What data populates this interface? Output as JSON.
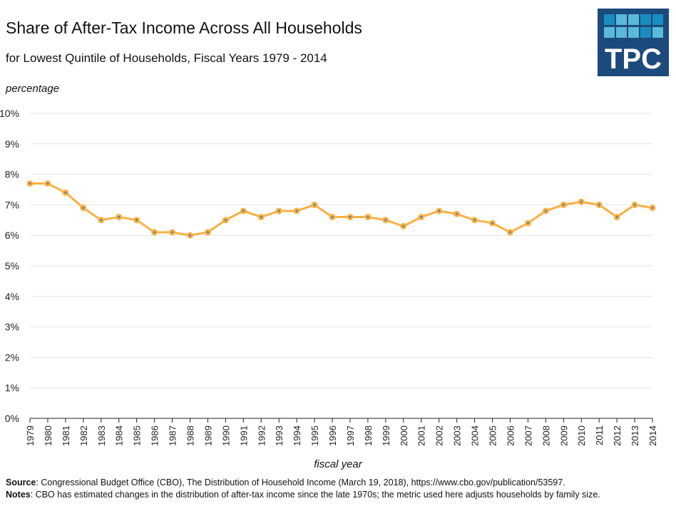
{
  "chart_data": {
    "type": "line",
    "title": "Share of After-Tax Income Across All Households",
    "subtitle": "for Lowest Quintile of Households, Fiscal Years 1979 - 2014",
    "xlabel": "fiscal year",
    "ylabel": "percentage",
    "ylim": [
      0,
      10
    ],
    "yticks": [
      "0%",
      "1%",
      "2%",
      "3%",
      "4%",
      "5%",
      "6%",
      "7%",
      "8%",
      "9%",
      "10%"
    ],
    "grid": true,
    "x": [
      1979,
      1980,
      1981,
      1982,
      1983,
      1984,
      1985,
      1986,
      1987,
      1988,
      1989,
      1990,
      1991,
      1992,
      1993,
      1994,
      1995,
      1996,
      1997,
      1998,
      1999,
      2000,
      2001,
      2002,
      2003,
      2004,
      2005,
      2006,
      2007,
      2008,
      2009,
      2010,
      2011,
      2012,
      2013,
      2014
    ],
    "values": [
      7.7,
      7.7,
      7.4,
      6.9,
      6.5,
      6.6,
      6.5,
      6.1,
      6.1,
      6.0,
      6.1,
      6.5,
      6.8,
      6.6,
      6.8,
      6.8,
      7.0,
      6.6,
      6.6,
      6.6,
      6.5,
      6.3,
      6.6,
      6.8,
      6.7,
      6.5,
      6.4,
      6.1,
      6.4,
      6.8,
      7.0,
      7.1,
      7.0,
      6.6,
      7.0,
      6.9
    ],
    "line_color": "#fbb040",
    "marker_center_color": "#4a7fb5"
  },
  "footer": {
    "source_label": "Source",
    "source_text": ": Congressional Budget Office (CBO), The Distribution of Household Income (March 19, 2018), https://www.cbo.gov/publication/53597.",
    "notes_label": "Notes",
    "notes_text": ": CBO has estimated changes in the distribution of after-tax income since the late 1970s; the metric used here adjusts households by family size."
  },
  "logo": {
    "text": "TPC",
    "bg": "#1b4a7c",
    "tile_dark": "#1a8cc0",
    "tile_light": "#5bb9da"
  }
}
